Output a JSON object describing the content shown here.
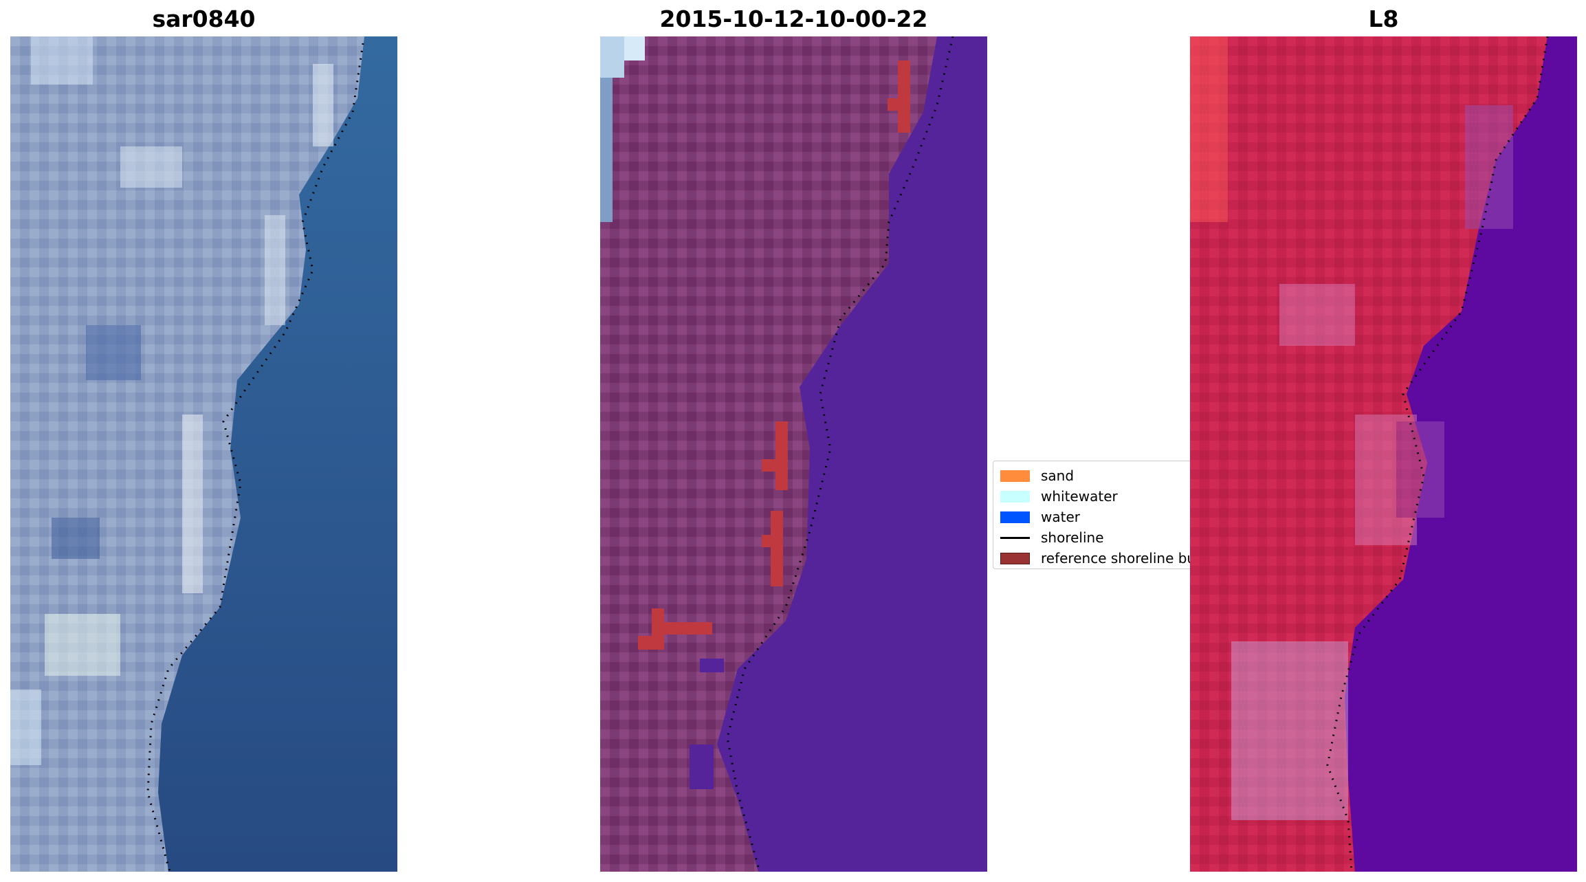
{
  "panels": [
    {
      "title": "sar0840"
    },
    {
      "title": "2015-10-12-10-00-22"
    },
    {
      "title": "L8"
    }
  ],
  "legend": {
    "items": [
      {
        "label": "sand",
        "kind": "patch",
        "color": "#ff8c3c"
      },
      {
        "label": "whitewater",
        "kind": "patch",
        "color": "#c8ffff"
      },
      {
        "label": "water",
        "kind": "patch",
        "color": "#0055ff"
      },
      {
        "label": "shoreline",
        "kind": "line",
        "color": "#000000"
      },
      {
        "label": "reference shoreline buffer",
        "kind": "patch",
        "color": "#993333"
      }
    ]
  },
  "colors": {
    "sea_rgb": "#2f5f93",
    "land_rgb": "#8a9cc0",
    "land_classified": "#7d3a73",
    "water_classified": "#55249a",
    "buffer": "#c0393f",
    "land_false_color": "#c42450",
    "water_false_color": "#5e0aa0"
  }
}
